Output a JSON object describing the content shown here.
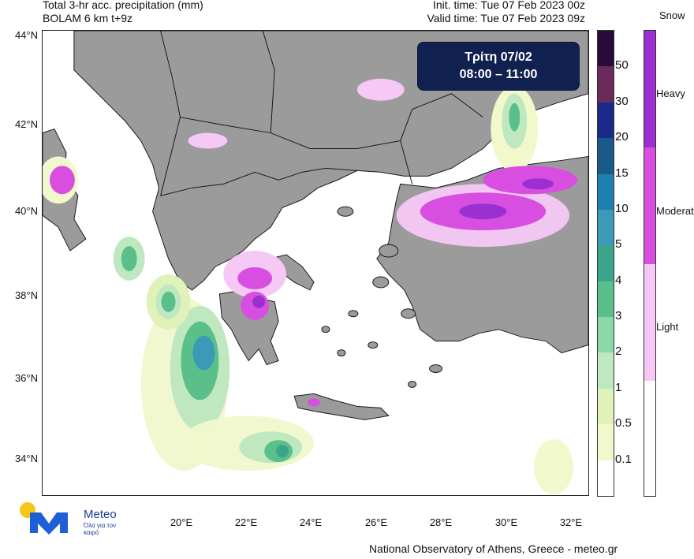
{
  "header": {
    "title_line1": "Total 3-hr acc. precipitation (mm)",
    "title_line2": "BOLAM 6 km t+9z",
    "init_time": "Init. time: Tue 07 Feb 2023 00z",
    "valid_time": "Valid time: Tue 07 Feb 2023 09z"
  },
  "date_box": {
    "day": "Τρίτη 07/02",
    "hours": "08:00 – 11:00"
  },
  "map": {
    "lat_labels": [
      "44°N",
      "42°N",
      "40°N",
      "38°N",
      "36°N",
      "34°N"
    ],
    "lon_labels": [
      "20°E",
      "22°E",
      "24°E",
      "26°E",
      "28°E",
      "30°E",
      "32°E"
    ],
    "colors": {
      "land": "#9b9b9b",
      "sea": "#ffffff",
      "border": "#1a1a1a"
    }
  },
  "rain_scale": {
    "labels": [
      "50",
      "30",
      "20",
      "15",
      "10",
      "5",
      "4",
      "3",
      "2",
      "1",
      "0.5",
      "0.1"
    ],
    "colors": [
      "#2a0a3a",
      "#6a2a5a",
      "#1a2a8a",
      "#1a5a8a",
      "#1f7fb0",
      "#3a9ab8",
      "#3aa58a",
      "#5bbf8a",
      "#8ad8a8",
      "#bfe8c0",
      "#e0f2b8",
      "#f0f8cc",
      "#ffffff"
    ]
  },
  "snow_scale": {
    "title": "Snow",
    "labels": [
      "Heavy",
      "Moderate",
      "Light"
    ],
    "colors": [
      "#9a30d0",
      "#d84ee0",
      "#f6c8f6",
      "#ffffff"
    ]
  },
  "logo": {
    "name": "Meteo",
    "tagline": "Όλα για τον καιρό"
  },
  "footer": "National Observatory of Athens, Greece - meteo.gr"
}
